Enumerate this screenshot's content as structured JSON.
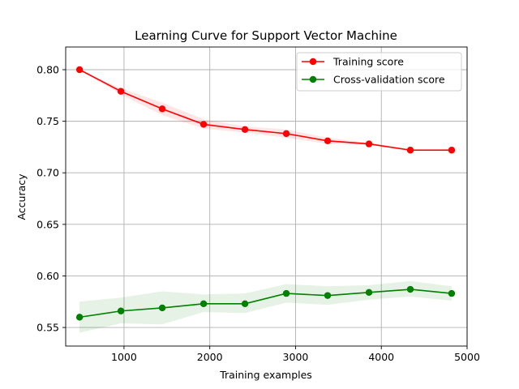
{
  "chart_data": {
    "type": "line",
    "title": "Learning Curve for Support Vector Machine",
    "xlabel": "Training examples",
    "ylabel": "Accuracy",
    "xlim": [
      320,
      5000
    ],
    "ylim": [
      0.532,
      0.822
    ],
    "x_ticks": [
      1000,
      2000,
      3000,
      4000,
      5000
    ],
    "y_ticks": [
      0.55,
      0.6,
      0.65,
      0.7,
      0.75,
      0.8
    ],
    "y_tick_labels": [
      "0.55",
      "0.60",
      "0.65",
      "0.70",
      "0.75",
      "0.80"
    ],
    "grid": true,
    "legend_position": "top-right",
    "x": [
      482,
      964,
      1446,
      1928,
      2410,
      2892,
      3374,
      3856,
      4338,
      4820
    ],
    "series": [
      {
        "name": "Training score",
        "color": "#ff0000",
        "band_color": "#ff0000",
        "values": [
          0.8,
          0.779,
          0.762,
          0.747,
          0.742,
          0.738,
          0.731,
          0.728,
          0.722,
          0.722
        ],
        "band_upper": [
          0.8,
          0.782,
          0.768,
          0.752,
          0.745,
          0.742,
          0.734,
          0.729,
          0.723,
          0.723
        ],
        "band_lower": [
          0.8,
          0.776,
          0.756,
          0.743,
          0.739,
          0.734,
          0.728,
          0.727,
          0.721,
          0.721
        ]
      },
      {
        "name": "Cross-validation score",
        "color": "#008000",
        "band_color": "#008000",
        "values": [
          0.56,
          0.566,
          0.569,
          0.573,
          0.573,
          0.583,
          0.581,
          0.584,
          0.587,
          0.583
        ],
        "band_upper": [
          0.575,
          0.579,
          0.585,
          0.582,
          0.583,
          0.592,
          0.59,
          0.591,
          0.595,
          0.59
        ],
        "band_lower": [
          0.545,
          0.554,
          0.553,
          0.565,
          0.564,
          0.574,
          0.572,
          0.577,
          0.58,
          0.576
        ]
      }
    ]
  }
}
